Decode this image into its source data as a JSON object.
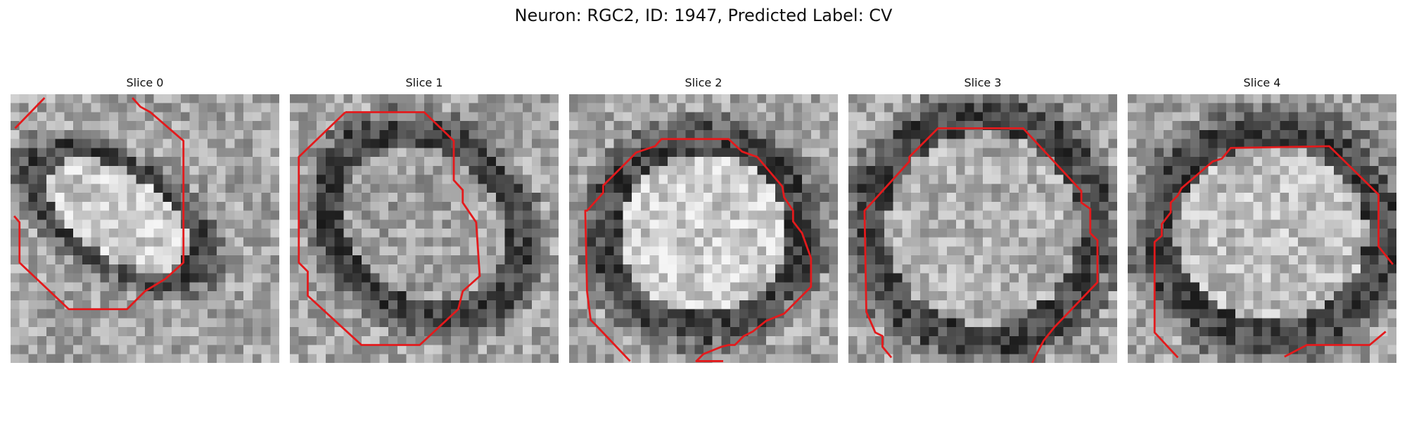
{
  "title": "Neuron: RGC2, ID: 1947, Predicted Label: CV",
  "slices": [
    {
      "label": "Slice 0"
    },
    {
      "label": "Slice 1"
    },
    {
      "label": "Slice 2"
    },
    {
      "label": "Slice 3"
    },
    {
      "label": "Slice 4"
    }
  ],
  "colors": {
    "contour": "#e31a1c",
    "background": "#ffffff"
  }
}
